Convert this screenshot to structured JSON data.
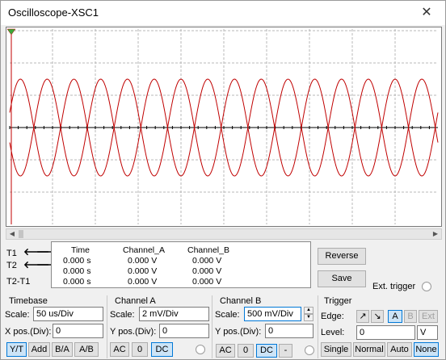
{
  "window": {
    "title": "Oscilloscope-XSC1",
    "close_glyph": "✕"
  },
  "scope": {
    "trace_color": "#c00000",
    "cycles": 8,
    "amplitude_div": 1.5,
    "divisions_x": 10,
    "divisions_y": 4
  },
  "readout": {
    "headers": [
      "Time",
      "Channel_A",
      "Channel_B"
    ],
    "rows": [
      {
        "label": "T1",
        "time": "0.000 s",
        "a": "0.000 V",
        "b": "0.000 V"
      },
      {
        "label": "T2",
        "time": "0.000 s",
        "a": "0.000 V",
        "b": "0.000 V"
      },
      {
        "label": "T2-T1",
        "time": "0.000 s",
        "a": "0.000 V",
        "b": "0.000 V"
      }
    ],
    "left_arrow": "🡐",
    "right_arrow": "🡒"
  },
  "buttons": {
    "reverse": "Reverse",
    "save": "Save",
    "ext_trigger": "Ext. trigger"
  },
  "timebase": {
    "title": "Timebase",
    "scale_label": "Scale:",
    "scale_value": "50 us/Div",
    "xpos_label": "X pos.(Div):",
    "xpos_value": "0",
    "modes": [
      "Y/T",
      "Add",
      "B/A",
      "A/B"
    ]
  },
  "channel_a": {
    "title": "Channel A",
    "scale_label": "Scale:",
    "scale_value": "2 mV/Div",
    "ypos_label": "Y pos.(Div):",
    "ypos_value": "0",
    "coupling": [
      "AC",
      "0",
      "DC"
    ]
  },
  "channel_b": {
    "title": "Channel B",
    "scale_label": "Scale:",
    "scale_value": "500 mV/Div",
    "ypos_label": "Y pos.(Div):",
    "ypos_value": "0",
    "coupling": [
      "AC",
      "0",
      "DC",
      "-"
    ]
  },
  "trigger": {
    "title": "Trigger",
    "edge_label": "Edge:",
    "edge_rise": "↗",
    "edge_fall": "↘",
    "sources": [
      "A",
      "B",
      "Ext"
    ],
    "level_label": "Level:",
    "level_value": "0",
    "level_unit": "V",
    "modes": [
      "Single",
      "Normal",
      "Auto",
      "None"
    ]
  }
}
